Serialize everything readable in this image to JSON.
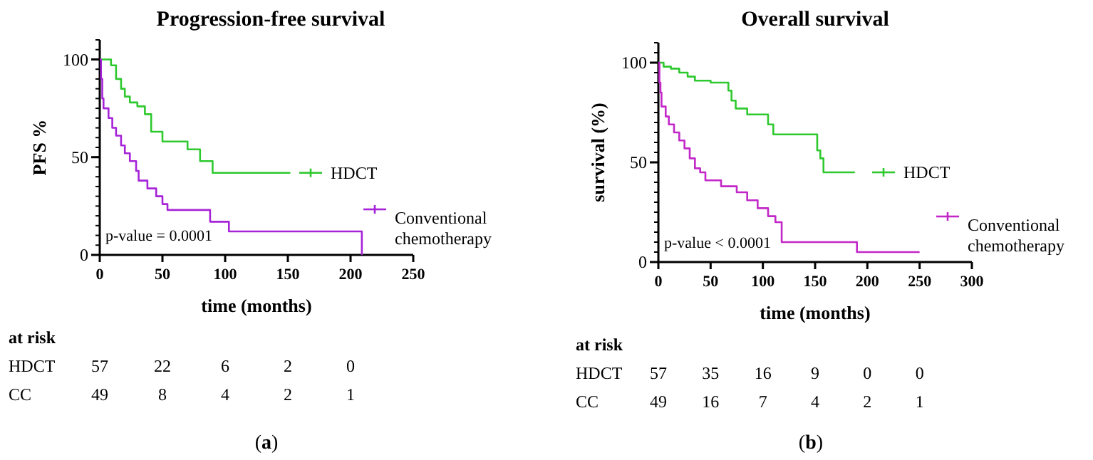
{
  "chart_data": [
    {
      "type": "step",
      "title": "Progression-free survival",
      "xlabel": "time (months)",
      "ylabel": "PFS %",
      "xlim": [
        0,
        250
      ],
      "xticks": [
        0,
        50,
        100,
        150,
        200,
        250
      ],
      "ylim": [
        0,
        110
      ],
      "yticks": [
        0,
        50,
        100
      ],
      "legend": "right",
      "grid": false,
      "series": [
        {
          "name": "HDCT",
          "color": "#2ec92e",
          "x": [
            0,
            9,
            13,
            17,
            20,
            24,
            30,
            36,
            41,
            50,
            70,
            80,
            90,
            152
          ],
          "values": [
            100,
            97,
            90,
            85,
            81,
            78,
            76,
            72,
            63,
            58,
            54,
            48,
            42,
            42
          ]
        },
        {
          "name": "Conventional chemotherapy",
          "color": "#a623d8",
          "x": [
            0,
            1,
            2,
            3,
            7,
            10,
            13,
            17,
            20,
            24,
            29,
            31,
            38,
            45,
            50,
            54,
            88,
            103,
            208,
            209
          ],
          "values": [
            100,
            90,
            80,
            75,
            70,
            65,
            61,
            56,
            52,
            48,
            43,
            38,
            34,
            30,
            26,
            23,
            17,
            12,
            12,
            0
          ]
        }
      ],
      "annotations": [
        "p-value = 0.0001",
        "at risk",
        "HDCT",
        "57",
        "22",
        "6",
        "2",
        "0",
        "CC",
        "49",
        "8",
        "4",
        "2",
        "1",
        "(a)"
      ]
    },
    {
      "type": "step",
      "title": "Overall survival",
      "xlabel": "time (months)",
      "ylabel": "survival (%)",
      "xlim": [
        0,
        300
      ],
      "xticks": [
        0,
        50,
        100,
        150,
        200,
        250,
        300
      ],
      "ylim": [
        0,
        110
      ],
      "yticks": [
        0,
        50,
        100
      ],
      "legend": "right",
      "grid": false,
      "series": [
        {
          "name": "HDCT",
          "color": "#2ec92e",
          "x": [
            0,
            5,
            12,
            20,
            28,
            35,
            50,
            67,
            70,
            74,
            85,
            105,
            110,
            152,
            155,
            158,
            188
          ],
          "values": [
            100,
            98,
            97,
            95,
            93,
            91,
            90,
            86,
            81,
            77,
            74,
            69,
            64,
            56,
            52,
            45,
            45
          ]
        },
        {
          "name": "Conventional chemotherapy",
          "color": "#c227c8",
          "x": [
            0,
            1,
            2,
            3,
            7,
            10,
            15,
            20,
            25,
            30,
            35,
            40,
            45,
            60,
            75,
            85,
            95,
            105,
            112,
            118,
            188,
            190,
            250
          ],
          "values": [
            100,
            90,
            85,
            78,
            73,
            69,
            65,
            61,
            57,
            52,
            47,
            45,
            41,
            38,
            35,
            31,
            27,
            23,
            20,
            10,
            10,
            5,
            5
          ]
        }
      ],
      "annotations": [
        "p-value < 0.0001",
        "at risk",
        "HDCT",
        "57",
        "35",
        "16",
        "9",
        "0",
        "0",
        "CC",
        "49",
        "16",
        "7",
        "4",
        "2",
        "1",
        "(b)"
      ]
    }
  ]
}
